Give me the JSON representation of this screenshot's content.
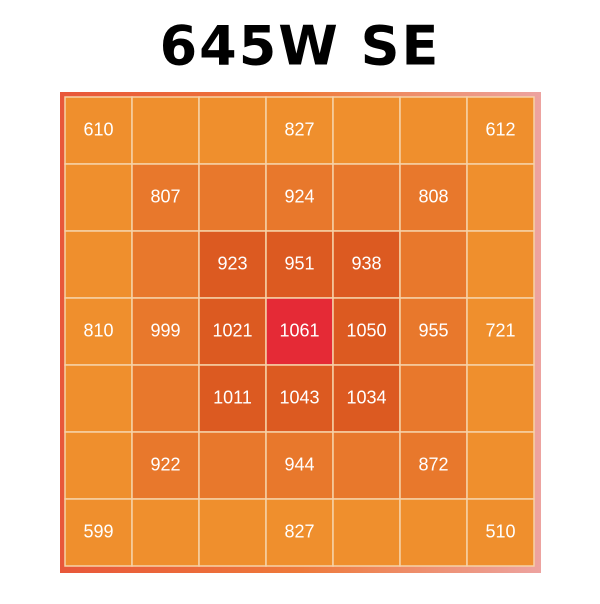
{
  "chart_data": {
    "type": "heatmap",
    "title": "645W SE",
    "values": [
      [
        610,
        null,
        null,
        827,
        null,
        null,
        612
      ],
      [
        null,
        807,
        null,
        924,
        null,
        808,
        null
      ],
      [
        null,
        null,
        923,
        951,
        938,
        null,
        null
      ],
      [
        810,
        999,
        1021,
        1061,
        1050,
        955,
        721
      ],
      [
        null,
        null,
        1011,
        1043,
        1034,
        null,
        null
      ],
      [
        null,
        922,
        null,
        944,
        null,
        872,
        null
      ],
      [
        599,
        null,
        null,
        827,
        null,
        null,
        510
      ]
    ],
    "colors": [
      "#ef8f2d",
      "#e8782c",
      "#dc5a21",
      "#e52a36"
    ]
  }
}
